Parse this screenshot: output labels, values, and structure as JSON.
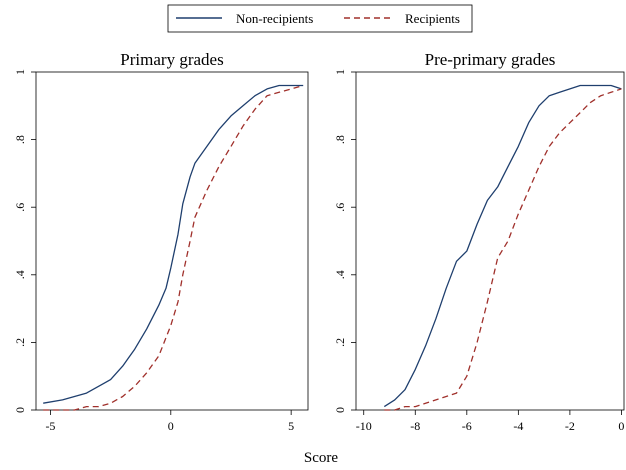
{
  "legend": {
    "items": [
      {
        "label": "Non-recipients",
        "color": "#1f3f6e",
        "dash": "solid"
      },
      {
        "label": "Recipients",
        "color": "#a0302b",
        "dash": "dashed"
      }
    ]
  },
  "xlabel": "Score",
  "chart_data": [
    {
      "type": "line",
      "title": "Primary grades",
      "xlim": [
        -5.6,
        5.7
      ],
      "ylim": [
        0,
        1
      ],
      "xticks": [
        -5,
        0,
        5
      ],
      "yticks": [
        0,
        0.2,
        0.4,
        0.6,
        0.8,
        1
      ],
      "ytick_labels": [
        "0",
        ".2",
        ".4",
        ".6",
        ".8",
        "1"
      ],
      "xtick_labels": [
        "-5",
        "0",
        "5"
      ],
      "series": [
        {
          "name": "Non-recipients",
          "x": [
            -5.3,
            -4.5,
            -4.0,
            -3.5,
            -3.0,
            -2.5,
            -2.0,
            -1.5,
            -1.0,
            -0.5,
            -0.2,
            0.0,
            0.3,
            0.5,
            0.8,
            1.0,
            1.5,
            2.0,
            2.5,
            3.0,
            3.5,
            4.0,
            4.5,
            5.0,
            5.5
          ],
          "y": [
            0.02,
            0.03,
            0.04,
            0.05,
            0.07,
            0.09,
            0.13,
            0.18,
            0.24,
            0.31,
            0.36,
            0.42,
            0.52,
            0.61,
            0.69,
            0.73,
            0.78,
            0.83,
            0.87,
            0.9,
            0.93,
            0.95,
            0.96,
            0.96,
            0.96
          ]
        },
        {
          "name": "Recipients",
          "x": [
            -5.3,
            -4.5,
            -4.0,
            -3.5,
            -3.0,
            -2.5,
            -2.0,
            -1.5,
            -1.0,
            -0.5,
            0.0,
            0.3,
            0.5,
            0.8,
            1.0,
            1.5,
            2.0,
            2.5,
            3.0,
            3.5,
            4.0,
            4.5,
            5.0,
            5.5
          ],
          "y": [
            0.0,
            0.0,
            0.0,
            0.01,
            0.01,
            0.02,
            0.04,
            0.07,
            0.11,
            0.16,
            0.25,
            0.32,
            0.4,
            0.5,
            0.57,
            0.65,
            0.72,
            0.78,
            0.84,
            0.89,
            0.93,
            0.94,
            0.95,
            0.96
          ]
        }
      ]
    },
    {
      "type": "line",
      "title": "Pre-primary grades",
      "xlim": [
        -10.3,
        0.1
      ],
      "ylim": [
        0,
        1
      ],
      "xticks": [
        -10,
        -8,
        -6,
        -4,
        -2,
        0
      ],
      "yticks": [
        0,
        0.2,
        0.4,
        0.6,
        0.8,
        1
      ],
      "ytick_labels": [
        "0",
        ".2",
        ".4",
        ".6",
        ".8",
        "1"
      ],
      "xtick_labels": [
        "-10",
        "-8",
        "-6",
        "-4",
        "-2",
        "0"
      ],
      "series": [
        {
          "name": "Non-recipients",
          "x": [
            -9.2,
            -8.8,
            -8.4,
            -8.0,
            -7.6,
            -7.2,
            -6.8,
            -6.4,
            -6.0,
            -5.6,
            -5.2,
            -4.8,
            -4.4,
            -4.0,
            -3.6,
            -3.2,
            -2.8,
            -2.4,
            -2.0,
            -1.6,
            -1.2,
            -0.8,
            -0.4,
            0.0
          ],
          "y": [
            0.01,
            0.03,
            0.06,
            0.12,
            0.19,
            0.27,
            0.36,
            0.44,
            0.47,
            0.55,
            0.62,
            0.66,
            0.72,
            0.78,
            0.85,
            0.9,
            0.93,
            0.94,
            0.95,
            0.96,
            0.96,
            0.96,
            0.96,
            0.95
          ]
        },
        {
          "name": "Recipients",
          "x": [
            -9.2,
            -8.8,
            -8.4,
            -8.0,
            -7.6,
            -7.2,
            -6.8,
            -6.4,
            -6.0,
            -5.6,
            -5.2,
            -4.8,
            -4.4,
            -4.0,
            -3.6,
            -3.2,
            -2.8,
            -2.4,
            -2.0,
            -1.6,
            -1.2,
            -0.8,
            -0.4,
            0.0
          ],
          "y": [
            0.0,
            0.0,
            0.01,
            0.01,
            0.02,
            0.03,
            0.04,
            0.05,
            0.1,
            0.2,
            0.32,
            0.45,
            0.5,
            0.58,
            0.65,
            0.72,
            0.78,
            0.82,
            0.85,
            0.88,
            0.91,
            0.93,
            0.94,
            0.95
          ]
        }
      ]
    }
  ]
}
